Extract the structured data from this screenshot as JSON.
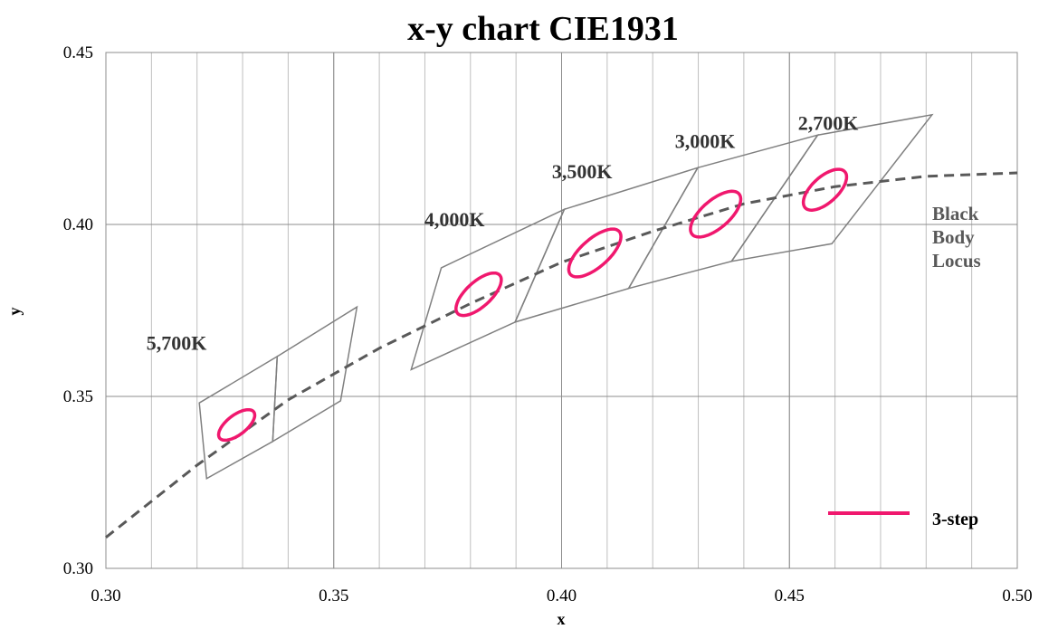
{
  "chart_data": {
    "type": "scatter",
    "title": "x-y chart  CIE1931",
    "xlabel": "x",
    "ylabel": "y",
    "xlim": [
      0.3,
      0.5
    ],
    "ylim": [
      0.3,
      0.45
    ],
    "x_ticks": [
      "0.30",
      "0.35",
      "0.40",
      "0.45",
      "0.50"
    ],
    "y_ticks": [
      "0.30",
      "0.35",
      "0.40",
      "0.45"
    ],
    "minor_x_step": 0.01,
    "grid": true,
    "black_body_locus": {
      "label_lines": [
        "Black",
        "Body",
        "Locus"
      ],
      "color": "#595959",
      "style": "dashed",
      "points": [
        [
          0.3,
          0.309
        ],
        [
          0.32,
          0.33
        ],
        [
          0.34,
          0.349
        ],
        [
          0.36,
          0.364
        ],
        [
          0.38,
          0.377
        ],
        [
          0.4,
          0.389
        ],
        [
          0.42,
          0.398
        ],
        [
          0.44,
          0.406
        ],
        [
          0.46,
          0.411
        ],
        [
          0.48,
          0.414
        ],
        [
          0.5,
          0.415
        ]
      ]
    },
    "quadrangles": [
      {
        "label": "5,700K",
        "corners": [
          [
            0.3205,
            0.3481
          ],
          [
            0.3376,
            0.3616
          ],
          [
            0.3366,
            0.3369
          ],
          [
            0.3221,
            0.3261
          ]
        ]
      },
      {
        "label": "",
        "corners": [
          [
            0.3376,
            0.3616
          ],
          [
            0.3551,
            0.376
          ],
          [
            0.3515,
            0.3487
          ],
          [
            0.3366,
            0.3369
          ]
        ]
      },
      {
        "label": "4,000K",
        "corners": [
          [
            0.3736,
            0.3874
          ],
          [
            0.4006,
            0.4044
          ],
          [
            0.3898,
            0.3716
          ],
          [
            0.367,
            0.3578
          ]
        ]
      },
      {
        "label": "3,500K",
        "corners": [
          [
            0.4006,
            0.4044
          ],
          [
            0.4299,
            0.4165
          ],
          [
            0.4147,
            0.3814
          ],
          [
            0.3898,
            0.3716
          ]
        ]
      },
      {
        "label": "3,000K",
        "corners": [
          [
            0.4299,
            0.4165
          ],
          [
            0.4562,
            0.426
          ],
          [
            0.4373,
            0.3893
          ],
          [
            0.4147,
            0.3814
          ]
        ]
      },
      {
        "label": "2,700K",
        "corners": [
          [
            0.4562,
            0.426
          ],
          [
            0.4813,
            0.4319
          ],
          [
            0.4593,
            0.3944
          ],
          [
            0.4373,
            0.3893
          ]
        ]
      }
    ],
    "ellipses": {
      "series_name": "3-step",
      "color": "#f0186e",
      "items": [
        {
          "label": "5,700K",
          "cx": 0.3287,
          "cy": 0.3417,
          "a": 0.0054,
          "b": 0.0025,
          "angle_deg": 50
        },
        {
          "label": "4,000K",
          "cx": 0.3818,
          "cy": 0.3797,
          "a": 0.0073,
          "b": 0.0031,
          "angle_deg": 54
        },
        {
          "label": "3,500K",
          "cx": 0.4073,
          "cy": 0.3917,
          "a": 0.0083,
          "b": 0.0035,
          "angle_deg": 53
        },
        {
          "label": "3,000K",
          "cx": 0.4338,
          "cy": 0.403,
          "a": 0.0079,
          "b": 0.0035,
          "angle_deg": 53
        },
        {
          "label": "2,700K",
          "cx": 0.4578,
          "cy": 0.4101,
          "a": 0.0069,
          "b": 0.0032,
          "angle_deg": 55
        }
      ]
    },
    "cct_labels": [
      {
        "text": "5,700K",
        "x": 0.3155,
        "y": 0.3635
      },
      {
        "text": "4,000K",
        "x": 0.3765,
        "y": 0.3995
      },
      {
        "text": "3,500K",
        "x": 0.4045,
        "y": 0.4134
      },
      {
        "text": "3,000K",
        "x": 0.4315,
        "y": 0.4223
      },
      {
        "text": "2,700K",
        "x": 0.4585,
        "y": 0.4275
      }
    ],
    "legend": {
      "label": "3-step",
      "position": "bottom-right"
    }
  }
}
